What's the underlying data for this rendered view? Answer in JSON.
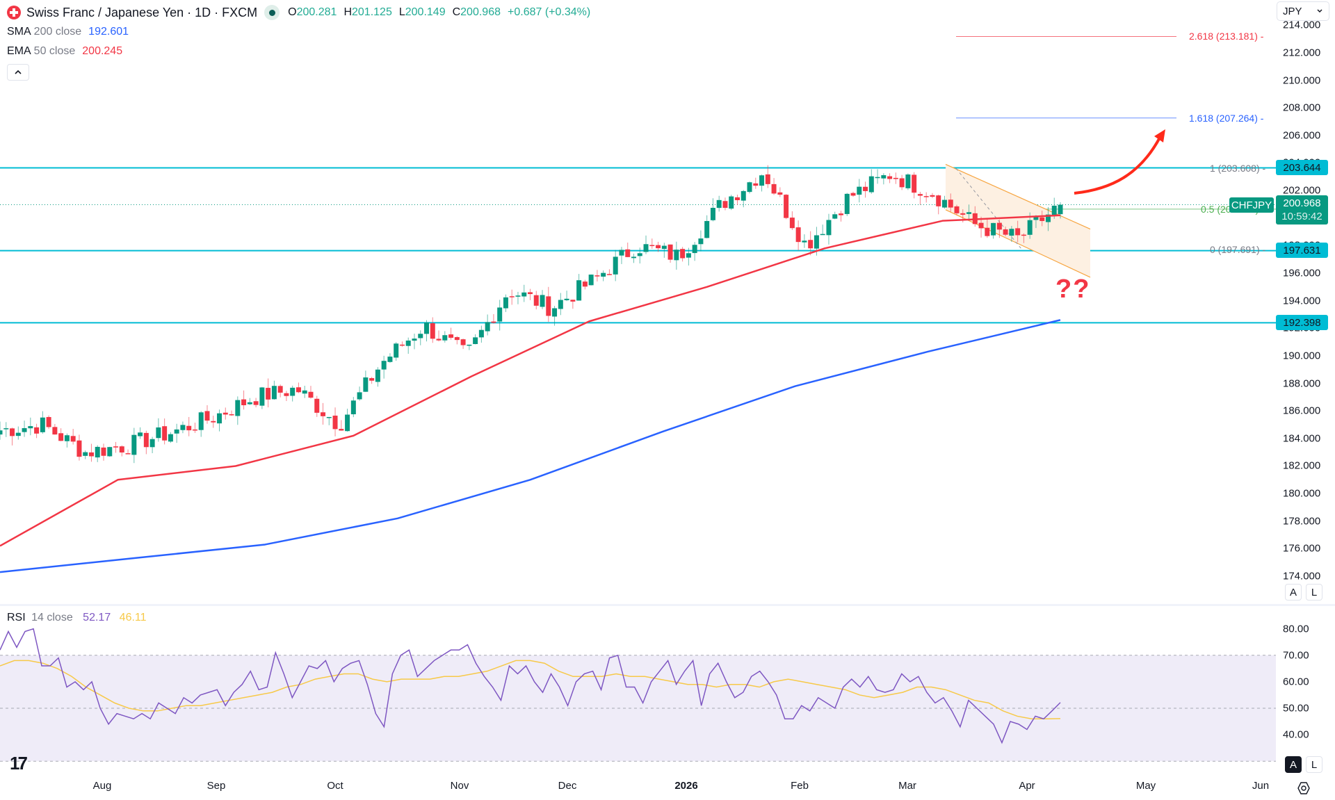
{
  "header": {
    "symbol_title": "Swiss Franc / Japanese Yen · 1D · FXCM",
    "ohlc": [
      {
        "key": "O",
        "value": "200.281"
      },
      {
        "key": "H",
        "value": "201.125"
      },
      {
        "key": "L",
        "value": "200.149"
      },
      {
        "key": "C",
        "value": "200.968"
      }
    ],
    "change": "+0.687 (+0.34%)",
    "currency": "JPY"
  },
  "indicators": [
    {
      "name": "SMA",
      "params": "200 close",
      "value": "192.601",
      "color": "#2962ff"
    },
    {
      "name": "EMA",
      "params": "50 close",
      "value": "200.245",
      "color": "#f23645"
    }
  ],
  "rsi_legend": {
    "name": "RSI",
    "params": "14 close",
    "value": "52.17",
    "ma_value": "46.11",
    "color": "#7e57c2",
    "ma_color": "#f7c948"
  },
  "price_axis": {
    "labels": [
      "214.000",
      "212.000",
      "210.000",
      "208.000",
      "206.000",
      "204.000",
      "202.000",
      "200.000",
      "198.000",
      "196.000",
      "194.000",
      "192.000",
      "190.000",
      "188.000",
      "186.000",
      "184.000",
      "182.000",
      "180.000",
      "178.000",
      "176.000",
      "174.000"
    ],
    "tags": [
      {
        "value": "203.644",
        "color": "#00bcd4"
      },
      {
        "value": "197.631",
        "color": "#00bcd4"
      },
      {
        "value": "192.398",
        "color": "#00bcd4"
      }
    ],
    "last_price": {
      "symbol": "CHFJPY",
      "value": "200.968",
      "countdown": "10:59:42"
    }
  },
  "rsi_axis": {
    "labels": [
      "80.00",
      "70.00",
      "60.00",
      "50.00",
      "40.00"
    ]
  },
  "time_axis": {
    "labels": [
      "Aug",
      "Sep",
      "Oct",
      "Nov",
      "Dec",
      "2026",
      "Feb",
      "Mar",
      "Apr",
      "May",
      "Jun"
    ]
  },
  "scale_buttons": {
    "auto": "A",
    "log": "L"
  },
  "fib_levels": [
    {
      "label": "2.618 (213.181)",
      "price": 213.181,
      "color": "#f23645"
    },
    {
      "label": "1.618 (207.264)",
      "price": 207.264,
      "color": "#2962ff"
    },
    {
      "label": "1 (203.608)",
      "price": 203.608,
      "color": "#787b86"
    },
    {
      "label": "0.5 (200.650)",
      "price": 200.65,
      "color": "#4caf50"
    },
    {
      "label": "0 (197.691)",
      "price": 197.691,
      "color": "#787b86"
    }
  ],
  "annotation_text": "??",
  "colors": {
    "up": "#089981",
    "down": "#f23645",
    "sma": "#2962ff",
    "ema": "#f23645",
    "hline": "#00bcd4",
    "channel": "#f7a540",
    "arrow": "#ff2a1a",
    "rsi_bg": "#efecf8"
  },
  "chart_data": [
    {
      "type": "candlestick",
      "title": "Swiss Franc / Japanese Yen · 1D · FXCM",
      "xlabel": "",
      "ylabel": "Price (JPY)",
      "ylim": [
        173,
        214.5
      ],
      "x_ticks": [
        "Aug",
        "Sep",
        "Oct",
        "Nov",
        "Dec",
        "2026",
        "Feb",
        "Mar",
        "Apr",
        "May",
        "Jun"
      ],
      "approx_close_path": [
        {
          "date": "Jul mid",
          "close": 184.6
        },
        {
          "date": "Jul end",
          "close": 185.0
        },
        {
          "date": "Aug start",
          "close": 183.0
        },
        {
          "date": "Aug mid",
          "close": 183.5
        },
        {
          "date": "Aug end",
          "close": 184.4
        },
        {
          "date": "Sep start",
          "close": 185.5
        },
        {
          "date": "Sep mid",
          "close": 187.0
        },
        {
          "date": "Sep end",
          "close": 187.6
        },
        {
          "date": "Oct start",
          "close": 185.0
        },
        {
          "date": "Oct mid",
          "close": 189.5
        },
        {
          "date": "Oct end",
          "close": 192.2
        },
        {
          "date": "Nov start",
          "close": 190.0
        },
        {
          "date": "Nov mid",
          "close": 194.8
        },
        {
          "date": "Nov end",
          "close": 193.5
        },
        {
          "date": "Dec mid",
          "close": 195.5
        },
        {
          "date": "Dec end",
          "close": 198.0
        },
        {
          "date": "Jan mid",
          "close": 197.2
        },
        {
          "date": "Jan end",
          "close": 201.0
        },
        {
          "date": "Feb start",
          "close": 203.4
        },
        {
          "date": "Feb mid",
          "close": 198.0
        },
        {
          "date": "Feb end",
          "close": 201.5
        },
        {
          "date": "Mar start",
          "close": 203.2
        },
        {
          "date": "Mar mid",
          "close": 201.8
        },
        {
          "date": "Mar end",
          "close": 199.5
        },
        {
          "date": "Apr start",
          "close": 198.5
        },
        {
          "date": "Apr 9",
          "close": 200.968
        }
      ],
      "last_ohlc": {
        "open": 200.281,
        "high": 201.125,
        "low": 200.149,
        "close": 200.968,
        "change": 0.687,
        "change_pct": 0.34
      },
      "series": [
        {
          "name": "SMA 200 close",
          "color": "#2962ff",
          "last": 192.601,
          "points": [
            {
              "date": "Jul mid",
              "value": 174.3
            },
            {
              "date": "Sep",
              "value": 175.3
            },
            {
              "date": "Oct",
              "value": 176.3
            },
            {
              "date": "Nov",
              "value": 178.2
            },
            {
              "date": "Dec",
              "value": 181.0
            },
            {
              "date": "2026",
              "value": 184.5
            },
            {
              "date": "Feb",
              "value": 187.8
            },
            {
              "date": "Mar",
              "value": 190.3
            },
            {
              "date": "Apr 9",
              "value": 192.6
            }
          ]
        },
        {
          "name": "EMA 50 close",
          "color": "#f23645",
          "last": 200.245,
          "points": [
            {
              "date": "Jul mid",
              "value": 176.2
            },
            {
              "date": "Aug",
              "value": 181.0
            },
            {
              "date": "Sep",
              "value": 182.0
            },
            {
              "date": "Oct",
              "value": 184.2
            },
            {
              "date": "Nov",
              "value": 188.5
            },
            {
              "date": "Dec",
              "value": 192.5
            },
            {
              "date": "2026",
              "value": 195.0
            },
            {
              "date": "Feb",
              "value": 197.8
            },
            {
              "date": "Mar",
              "value": 199.8
            },
            {
              "date": "Apr 9",
              "value": 200.2
            }
          ]
        }
      ],
      "horizontal_levels": [
        203.644,
        197.631,
        192.398
      ],
      "fibonacci_extension": [
        {
          "level": "2.618",
          "price": 213.181
        },
        {
          "level": "1.618",
          "price": 207.264
        },
        {
          "level": "1",
          "price": 203.608
        },
        {
          "level": "0.5",
          "price": 200.65
        },
        {
          "level": "0",
          "price": 197.691
        }
      ],
      "descending_channel": {
        "from": "Mar start",
        "to": "mid Apr",
        "upper": [
          203.9,
          199.2
        ],
        "lower": [
          200.6,
          195.7
        ]
      },
      "annotations": [
        "Curved red arrow pointing up toward 1.618 (207.264)",
        "?? below descending channel"
      ]
    },
    {
      "type": "line",
      "title": "RSI 14 close",
      "ylim": [
        32,
        83
      ],
      "bands": {
        "upper": 70,
        "middle": 50,
        "lower": 30
      },
      "x_ticks": [
        "Aug",
        "Sep",
        "Oct",
        "Nov",
        "Dec",
        "2026",
        "Feb",
        "Mar",
        "Apr",
        "May",
        "Jun"
      ],
      "series": [
        {
          "name": "RSI",
          "color": "#7e57c2",
          "last": 52.17,
          "values": [
            72,
            79,
            73,
            79,
            80,
            66,
            66,
            69,
            58,
            60,
            57,
            60,
            50,
            44,
            48,
            47,
            46,
            48,
            46,
            52,
            50,
            48,
            54,
            52,
            55,
            56,
            57,
            51,
            56,
            59,
            64,
            57,
            58,
            71,
            63,
            54,
            60,
            66,
            65,
            68,
            60,
            65,
            67,
            68,
            59,
            48,
            43,
            63,
            70,
            72,
            62,
            65,
            68,
            70,
            72,
            72,
            74,
            67,
            62,
            58,
            53,
            66,
            63,
            66,
            60,
            56,
            63,
            58,
            51,
            60,
            63,
            64,
            57,
            69,
            70,
            58,
            58,
            52,
            60,
            64,
            68,
            59,
            64,
            68,
            51,
            63,
            67,
            60,
            54,
            56,
            62,
            64,
            60,
            55,
            46,
            46,
            51,
            49,
            54,
            52,
            50,
            58,
            61,
            58,
            62,
            57,
            56,
            57,
            63,
            60,
            62,
            56,
            52,
            54,
            49,
            43,
            53,
            50,
            47,
            44,
            37,
            45,
            44,
            42,
            47,
            46,
            49,
            52.17
          ]
        },
        {
          "name": "RSI-based MA",
          "color": "#f7c948",
          "last": 46.11,
          "values": [
            66,
            68,
            68,
            67,
            65,
            62,
            58,
            55,
            52,
            50,
            49,
            49,
            50,
            51,
            51,
            52,
            53,
            54,
            55,
            56,
            58,
            59,
            61,
            62,
            63,
            63,
            61,
            60,
            61,
            61,
            61,
            62,
            62,
            63,
            64,
            66,
            68,
            68,
            67,
            64,
            62,
            62,
            62,
            63,
            62,
            62,
            61,
            60,
            59,
            59,
            58,
            59,
            59,
            58,
            60,
            61,
            60,
            59,
            58,
            57,
            55,
            54,
            55,
            56,
            58,
            58,
            57,
            55,
            53,
            52,
            49,
            47,
            46,
            46,
            46.11
          ]
        }
      ]
    }
  ]
}
